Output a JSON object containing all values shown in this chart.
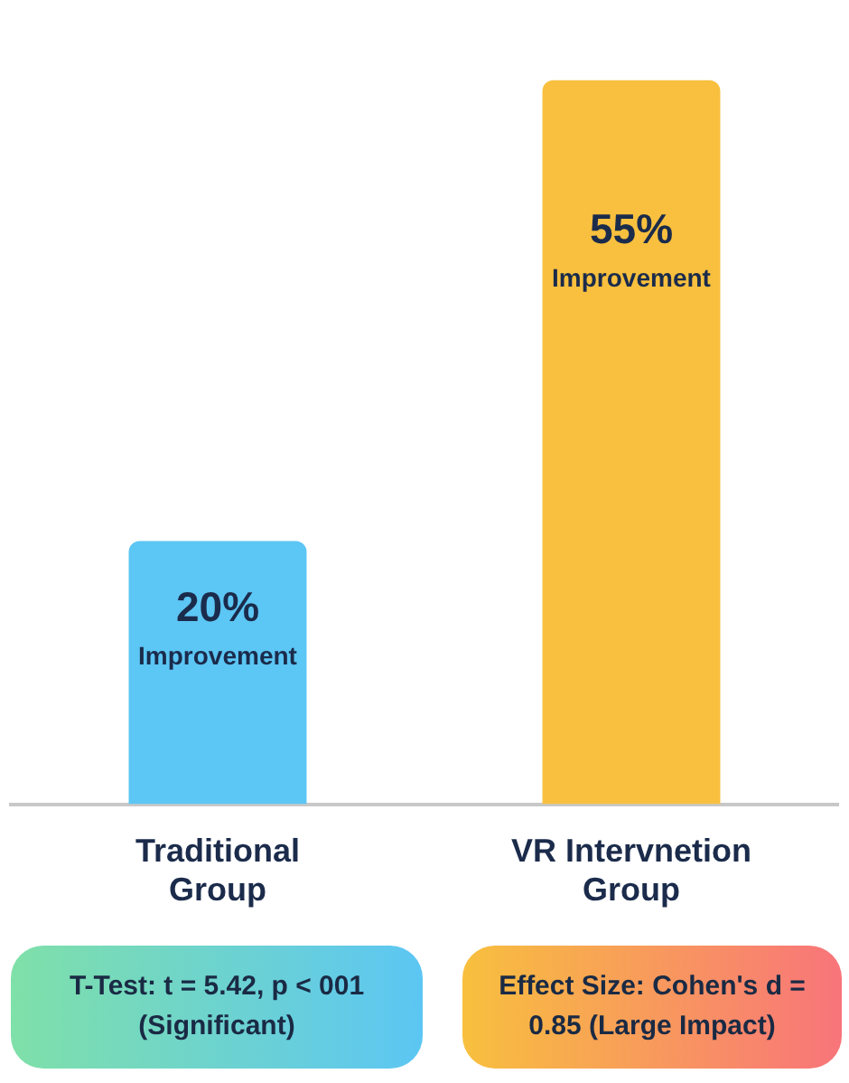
{
  "chart_data": {
    "type": "bar",
    "categories": [
      "Traditional Group",
      "VR Intervnetion Group"
    ],
    "values": [
      20,
      55
    ],
    "colors": [
      "#5cc6f4",
      "#f8c03e"
    ],
    "value_labels": [
      "20%\nImprovement",
      "55%\nImprovement"
    ],
    "grid": false,
    "legend": false,
    "annotations": [
      "T-Test: t = 5.42, p < 001 (Significant)",
      "Effect Size: Cohen's d = 0.85 (Large Impact)"
    ]
  }
}
